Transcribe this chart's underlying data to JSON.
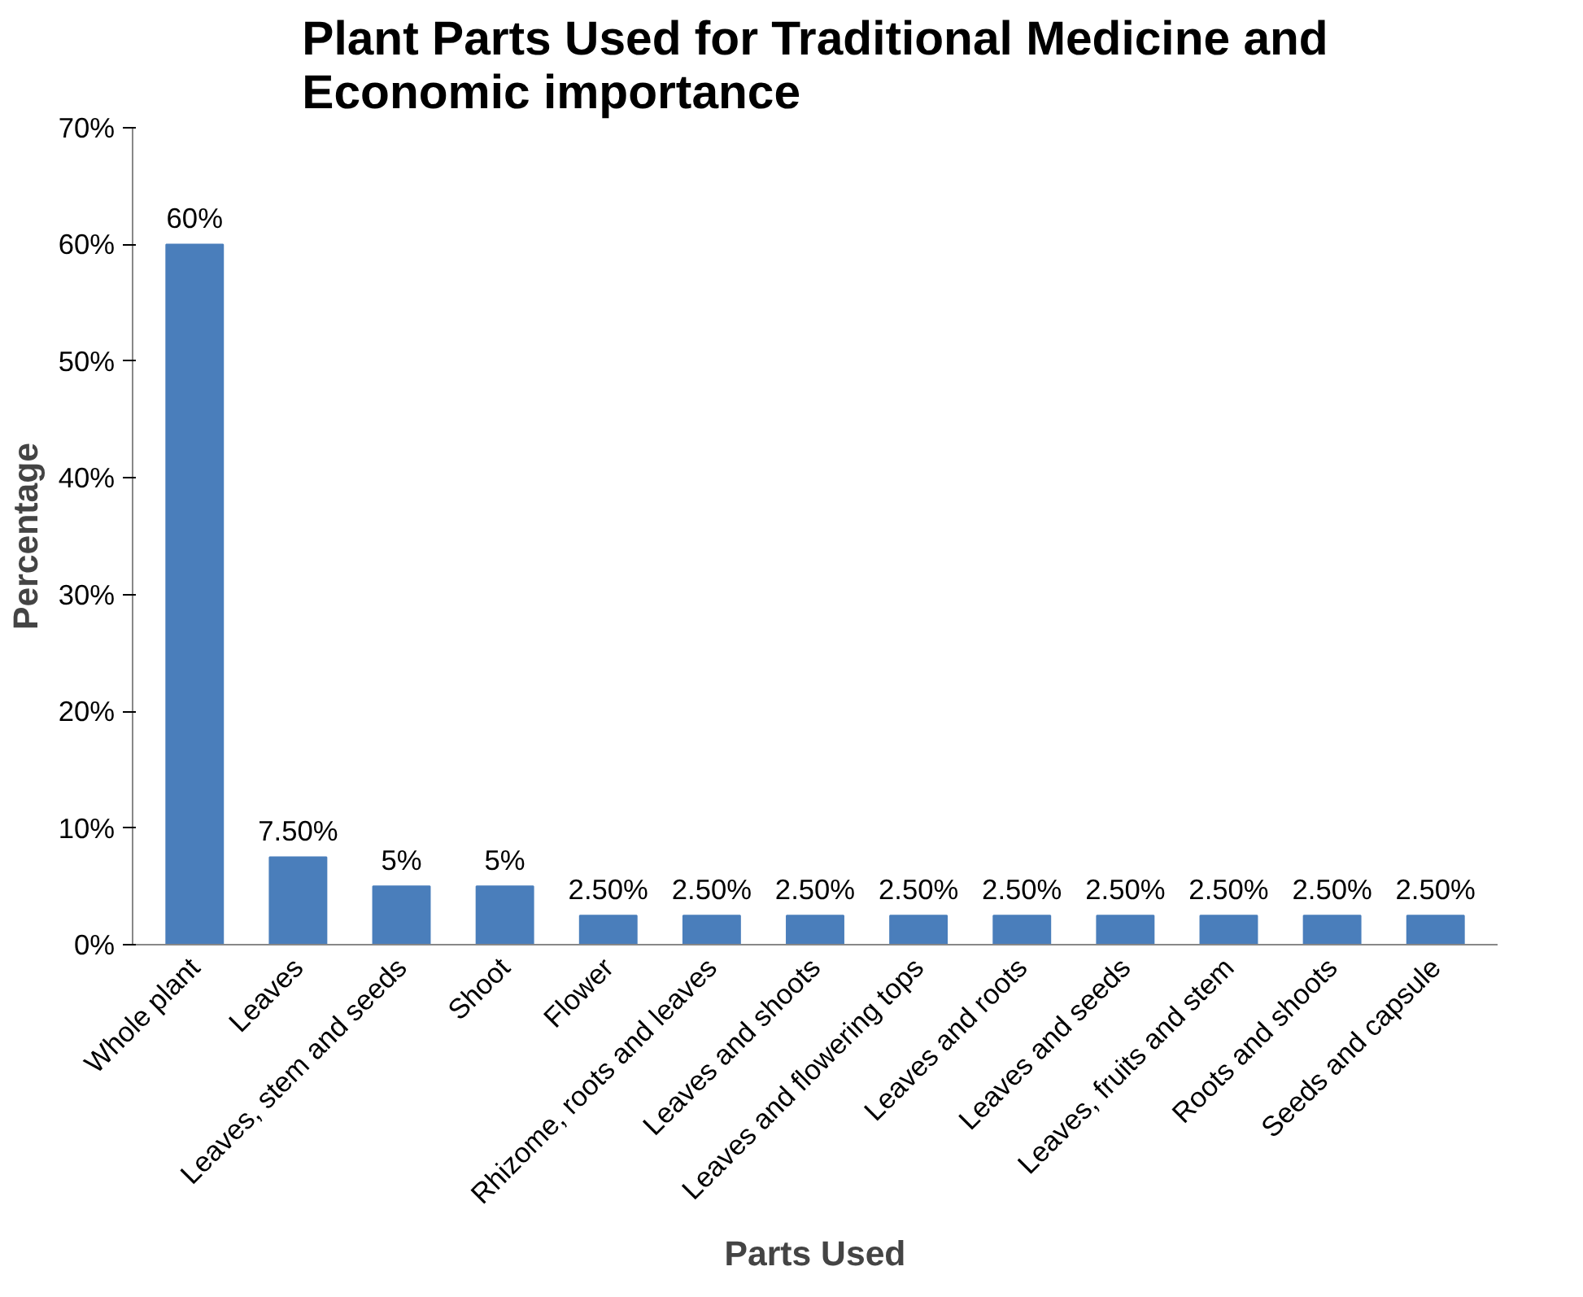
{
  "chart_data": {
    "type": "bar",
    "title": "Plant Parts Used for Traditional Medicine and Economic importance",
    "xlabel": "Parts Used",
    "ylabel": "Percentage",
    "categories": [
      "Whole plant",
      "Leaves",
      "Leaves, stem and seeds",
      "Shoot",
      "Flower",
      "Rhizome, roots and leaves",
      "Leaves and shoots",
      "Leaves and flowering tops",
      "Leaves and roots",
      "Leaves and seeds",
      "Leaves, fruits and stem",
      "Roots and shoots",
      "Seeds and capsule"
    ],
    "values": [
      60,
      7.5,
      5,
      5,
      2.5,
      2.5,
      2.5,
      2.5,
      2.5,
      2.5,
      2.5,
      2.5,
      2.5
    ],
    "value_labels": [
      "60%",
      "7.50%",
      "5%",
      "5%",
      "2.50%",
      "2.50%",
      "2.50%",
      "2.50%",
      "2.50%",
      "2.50%",
      "2.50%",
      "2.50%",
      "2.50%"
    ],
    "color": "#4a7ebb",
    "ylim": [
      0,
      70
    ],
    "yticks": [
      {
        "value": 0,
        "label": "0%"
      },
      {
        "value": 10,
        "label": "10%"
      },
      {
        "value": 20,
        "label": "20%"
      },
      {
        "value": 30,
        "label": "30%"
      },
      {
        "value": 40,
        "label": "40%"
      },
      {
        "value": 50,
        "label": "50%"
      },
      {
        "value": 60,
        "label": "60%"
      },
      {
        "value": 70,
        "label": "70%"
      }
    ],
    "grid": false
  }
}
